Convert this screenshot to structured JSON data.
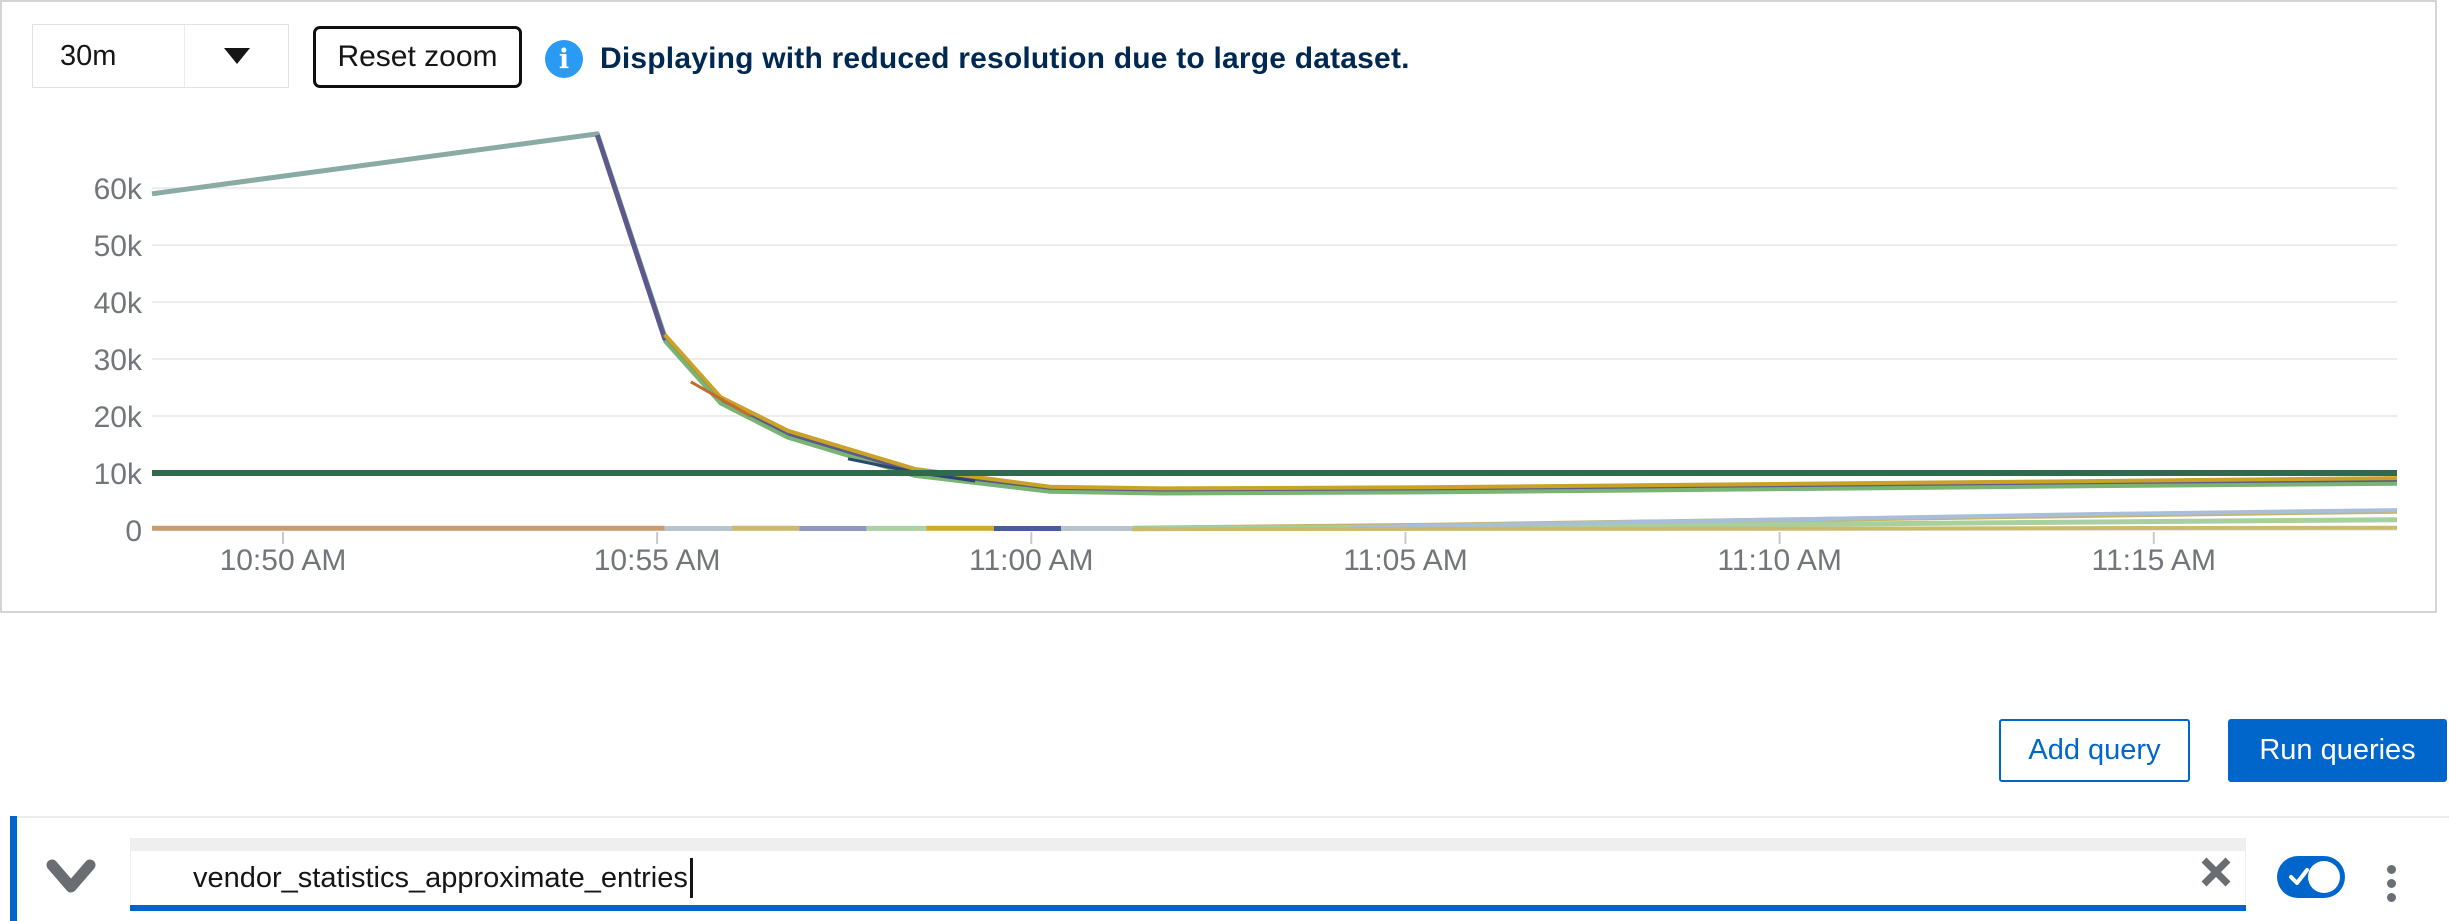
{
  "toolbar": {
    "timespan_select": {
      "value": "30m"
    },
    "reset_zoom_label": "Reset zoom",
    "info_message": "Displaying with reduced resolution due to large dataset."
  },
  "query_actions": {
    "add_query_label": "Add query",
    "run_queries_label": "Run queries"
  },
  "query_row": {
    "expand_icon": "chevron-down-icon",
    "query_value": "vendor_statistics_approximate_entries",
    "clear_icon": "close-icon",
    "toggle": {
      "state": "on",
      "icon": "check-icon"
    },
    "menu_icon": "kebab-menu-icon"
  },
  "colors": {
    "accent_blue": "#0066cc",
    "info_icon_blue": "#2b9af3",
    "info_text_navy": "#002952",
    "panel_border": "#d4d4d4",
    "axis_label_gray": "#72767b"
  },
  "chart_data": {
    "type": "line",
    "title": "",
    "xlabel": "",
    "ylabel": "",
    "grid": true,
    "legend_position": "none",
    "x_axis": {
      "unit": "minutes (30m window ending ~11:18 AM)",
      "range": [
        0,
        30
      ],
      "ticks": [
        {
          "t": 1.75,
          "label": "10:50 AM"
        },
        {
          "t": 6.75,
          "label": "10:55 AM"
        },
        {
          "t": 11.75,
          "label": "11:00 AM"
        },
        {
          "t": 16.75,
          "label": "11:05 AM"
        },
        {
          "t": 21.75,
          "label": "11:10 AM"
        },
        {
          "t": 26.75,
          "label": "11:15 AM"
        }
      ]
    },
    "y_axis": {
      "range": [
        0,
        73000
      ],
      "ticks": [
        {
          "v": 0,
          "label": "0"
        },
        {
          "v": 10000,
          "label": "10k"
        },
        {
          "v": 20000,
          "label": "20k"
        },
        {
          "v": 30000,
          "label": "30k"
        },
        {
          "v": 40000,
          "label": "40k"
        },
        {
          "v": 50000,
          "label": "50k"
        },
        {
          "v": 60000,
          "label": "60k"
        }
      ]
    },
    "series": [
      {
        "name": "main-teal",
        "color": "#8aaba3",
        "width": 5,
        "points": [
          [
            0,
            59000
          ],
          [
            5.95,
            69500
          ],
          [
            6.85,
            34000
          ],
          [
            7.6,
            23000
          ],
          [
            8.5,
            17000
          ],
          [
            10.2,
            10300
          ],
          [
            12,
            7300
          ],
          [
            13.5,
            7000
          ],
          [
            17,
            7200
          ],
          [
            22,
            7800
          ],
          [
            26,
            8300
          ],
          [
            30,
            8800
          ]
        ]
      },
      {
        "name": "main-purple",
        "color": "#5c5a8a",
        "width": 5,
        "points": [
          [
            5.95,
            69300
          ],
          [
            6.85,
            33600
          ],
          [
            7.6,
            22600
          ],
          [
            8.5,
            16600
          ],
          [
            10.2,
            9900
          ],
          [
            12,
            7000
          ],
          [
            13.5,
            6700
          ],
          [
            17,
            6900
          ],
          [
            22,
            7500
          ],
          [
            26,
            8000
          ],
          [
            30,
            8500
          ]
        ]
      },
      {
        "name": "main-gold",
        "color": "#c9a227",
        "width": 4,
        "points": [
          [
            6.85,
            34300
          ],
          [
            7.6,
            23300
          ],
          [
            8.5,
            17400
          ],
          [
            10.2,
            10700
          ],
          [
            12,
            7600
          ],
          [
            13.5,
            7300
          ],
          [
            17,
            7500
          ],
          [
            22,
            8100
          ],
          [
            26,
            8600
          ],
          [
            30,
            9100
          ]
        ]
      },
      {
        "name": "main-green",
        "color": "#79b473",
        "width": 4,
        "points": [
          [
            6.85,
            33200
          ],
          [
            7.6,
            22200
          ],
          [
            8.5,
            16200
          ],
          [
            10.2,
            9500
          ],
          [
            12,
            6700
          ],
          [
            13.5,
            6400
          ],
          [
            17,
            6600
          ],
          [
            22,
            7200
          ],
          [
            26,
            7700
          ],
          [
            30,
            8100
          ]
        ]
      },
      {
        "name": "segment-navy",
        "color": "#2c4770",
        "width": 3,
        "points": [
          [
            9.3,
            12500
          ],
          [
            10.2,
            10100
          ],
          [
            11,
            8600
          ]
        ]
      },
      {
        "name": "segment-orange",
        "color": "#c46a2e",
        "width": 3,
        "points": [
          [
            7.2,
            26000
          ],
          [
            8.0,
            20000
          ]
        ]
      },
      {
        "name": "flat-dark-green-10k",
        "color": "#2f6a4f",
        "width": 6,
        "points": [
          [
            0,
            10000
          ],
          [
            30,
            10000
          ]
        ]
      },
      {
        "name": "zero-salmon",
        "color": "#c89b72",
        "width": 5,
        "points": [
          [
            0,
            300
          ],
          [
            6.85,
            300
          ]
        ]
      },
      {
        "name": "zero-lightblue",
        "color": "#b5c4cd",
        "width": 5,
        "points": [
          [
            6.85,
            260
          ],
          [
            7.75,
            260
          ]
        ]
      },
      {
        "name": "zero-khaki",
        "color": "#c9ba6c",
        "width": 5,
        "points": [
          [
            7.75,
            290
          ],
          [
            8.65,
            290
          ]
        ]
      },
      {
        "name": "zero-slate",
        "color": "#8e97c0",
        "width": 5,
        "points": [
          [
            8.65,
            260
          ],
          [
            9.55,
            260
          ]
        ]
      },
      {
        "name": "zero-lightgreen",
        "color": "#aed0a5",
        "width": 5,
        "points": [
          [
            9.55,
            280
          ],
          [
            10.35,
            280
          ]
        ]
      },
      {
        "name": "zero-gold",
        "color": "#d1a929",
        "width": 5,
        "points": [
          [
            10.35,
            310
          ],
          [
            11.25,
            310
          ]
        ]
      },
      {
        "name": "zero-indigo",
        "color": "#4a5a9e",
        "width": 5,
        "points": [
          [
            11.25,
            260
          ],
          [
            12.15,
            260
          ]
        ]
      },
      {
        "name": "zero-lightblue-2",
        "color": "#b5c4cd",
        "width": 5,
        "points": [
          [
            12.15,
            260
          ],
          [
            13.1,
            260
          ]
        ]
      },
      {
        "name": "rise-khaki",
        "color": "#c5b568",
        "width": 5,
        "points": [
          [
            13.1,
            320
          ],
          [
            17,
            800
          ],
          [
            22,
            1800
          ],
          [
            26,
            2600
          ],
          [
            30,
            3300
          ]
        ]
      },
      {
        "name": "rise-lightgreen",
        "color": "#a8cf9e",
        "width": 5,
        "points": [
          [
            13.1,
            220
          ],
          [
            17,
            450
          ],
          [
            22,
            1000
          ],
          [
            26,
            1400
          ],
          [
            30,
            1800
          ]
        ]
      },
      {
        "name": "rise-lightblue",
        "color": "#a9bedb",
        "width": 4,
        "points": [
          [
            16,
            500
          ],
          [
            22,
            1900
          ],
          [
            26,
            2800
          ],
          [
            30,
            3500
          ]
        ]
      },
      {
        "name": "flat-khaki-low",
        "color": "#c9ba6c",
        "width": 4,
        "points": [
          [
            13.1,
            150
          ],
          [
            22,
            250
          ],
          [
            30,
            400
          ]
        ]
      }
    ]
  }
}
